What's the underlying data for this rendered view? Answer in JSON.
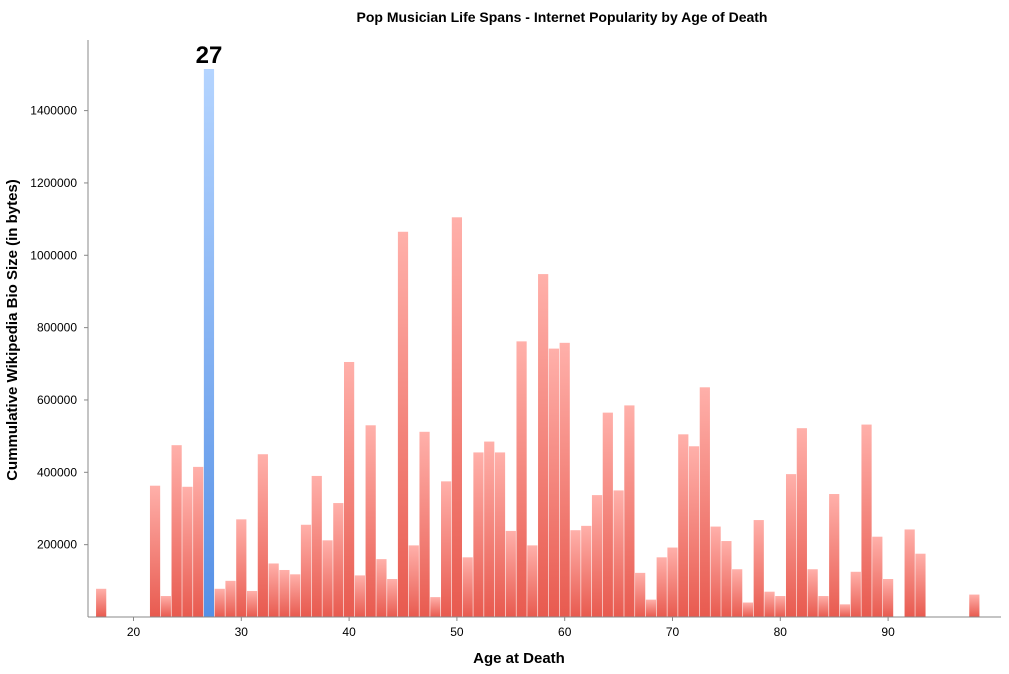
{
  "chart_data": {
    "type": "bar",
    "title": "Pop Musician Life Spans - Internet Popularity by Age of Death",
    "xlabel": "Age at Death",
    "ylabel": "Cummulative Wikipedia Bio Size (in bytes)",
    "xlim": [
      16,
      100
    ],
    "ylim": [
      0,
      1600000
    ],
    "x_ticks": [
      20,
      30,
      40,
      50,
      60,
      70,
      80,
      90
    ],
    "y_ticks": [
      200000,
      400000,
      600000,
      800000,
      1000000,
      1200000,
      1400000
    ],
    "grid": false,
    "legend": "none",
    "highlight": {
      "x": 27,
      "label": "27"
    },
    "colors": {
      "bar": "#e85a4f",
      "bar_light": "#ffb0aa",
      "highlight": "#5590e6",
      "highlight_light": "#b4d4ff",
      "axis": "#888888"
    },
    "x": [
      17,
      22,
      23,
      24,
      25,
      26,
      27,
      28,
      29,
      30,
      31,
      32,
      33,
      34,
      35,
      36,
      37,
      38,
      39,
      40,
      41,
      42,
      43,
      44,
      45,
      46,
      47,
      48,
      49,
      50,
      51,
      52,
      53,
      54,
      55,
      56,
      57,
      58,
      59,
      60,
      61,
      62,
      63,
      64,
      65,
      66,
      67,
      68,
      69,
      70,
      71,
      72,
      73,
      74,
      75,
      76,
      77,
      78,
      79,
      80,
      81,
      82,
      83,
      84,
      85,
      86,
      87,
      88,
      89,
      90,
      92,
      93,
      98
    ],
    "values": [
      78000,
      363000,
      58000,
      475000,
      360000,
      415000,
      1515000,
      78000,
      100000,
      270000,
      72000,
      450000,
      148000,
      130000,
      118000,
      255000,
      390000,
      212000,
      315000,
      705000,
      115000,
      530000,
      160000,
      105000,
      1065000,
      198000,
      512000,
      55000,
      375000,
      1105000,
      165000,
      455000,
      485000,
      455000,
      238000,
      762000,
      198000,
      948000,
      742000,
      758000,
      240000,
      252000,
      337000,
      565000,
      350000,
      585000,
      122000,
      48000,
      165000,
      192000,
      505000,
      472000,
      635000,
      250000,
      210000,
      132000,
      40000,
      268000,
      70000,
      58000,
      395000,
      522000,
      132000,
      58000,
      340000,
      35000,
      125000,
      532000,
      222000,
      105000,
      242000,
      175000,
      62000
    ]
  }
}
